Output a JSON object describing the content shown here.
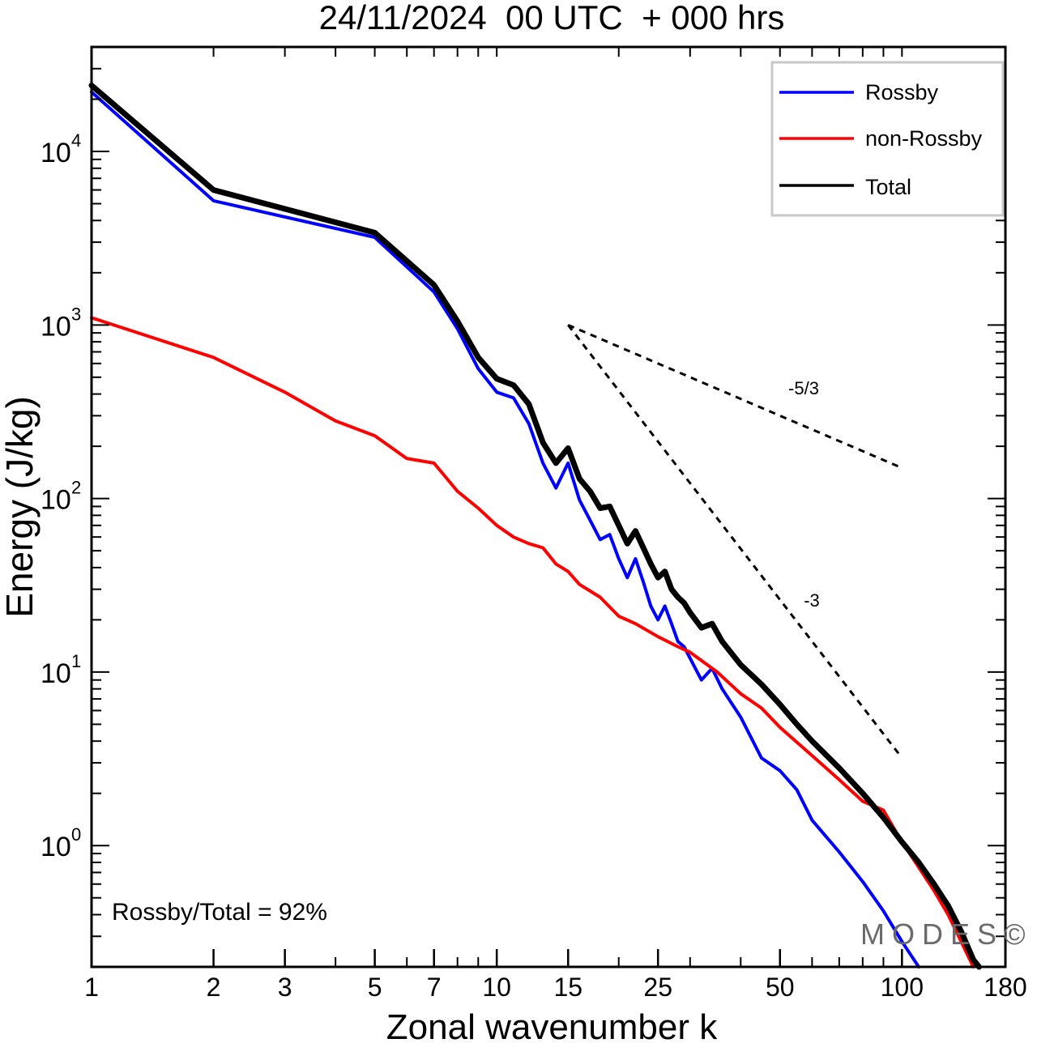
{
  "chart_data": {
    "type": "line",
    "title": "24/11/2024  00 UTC  + 000 hrs",
    "xlabel": "Zonal wavenumber k",
    "ylabel": "Energy (J/kg)",
    "xscale": "log",
    "yscale": "log",
    "xlim": [
      1,
      180
    ],
    "ylim": [
      0.2,
      40000
    ],
    "x_ticks": [
      1,
      2,
      3,
      5,
      7,
      10,
      15,
      25,
      50,
      100,
      180
    ],
    "x_tick_labels": [
      "1",
      "2",
      "3",
      "5",
      "7",
      "10",
      "15",
      "25",
      "50",
      "100",
      "180"
    ],
    "y_ticks": [
      1,
      10,
      100,
      1000,
      10000
    ],
    "y_tick_base": "10",
    "y_tick_exponents": [
      "0",
      "1",
      "2",
      "3",
      "4"
    ],
    "legend": {
      "placement": "top-right",
      "entries": [
        "Rossby",
        "non-Rossby",
        "Total"
      ]
    },
    "series": [
      {
        "name": "Rossby",
        "color": "#0000ff",
        "x": [
          1,
          2,
          5,
          7,
          8,
          9,
          10,
          11,
          12,
          13,
          14,
          15,
          16,
          17,
          18,
          19,
          20,
          21,
          22,
          23,
          24,
          25,
          26,
          27,
          28,
          29,
          30,
          32,
          34,
          36,
          40,
          45,
          50,
          55,
          60,
          70,
          80,
          90,
          100,
          110
        ],
        "y": [
          22000,
          5200,
          3200,
          1550,
          950,
          560,
          410,
          380,
          270,
          160,
          115,
          160,
          98,
          75,
          58,
          62,
          45,
          35,
          45,
          33,
          24,
          20,
          24,
          19,
          15,
          14,
          12,
          9,
          10.5,
          8,
          5.5,
          3.2,
          2.7,
          2.1,
          1.4,
          0.92,
          0.62,
          0.42,
          0.28,
          0.2
        ]
      },
      {
        "name": "non-Rossby",
        "color": "#ff0000",
        "x": [
          1,
          2,
          3,
          4,
          5,
          6,
          7,
          8,
          9,
          10,
          11,
          12,
          13,
          14,
          15,
          16,
          18,
          20,
          22,
          25,
          28,
          30,
          35,
          40,
          45,
          50,
          60,
          70,
          80,
          90,
          100,
          110,
          120,
          130,
          140,
          150
        ],
        "y": [
          1100,
          650,
          410,
          280,
          230,
          170,
          160,
          110,
          88,
          70,
          60,
          55,
          52,
          42,
          38,
          32,
          27,
          21,
          19,
          16,
          14,
          13,
          10,
          7.5,
          6.2,
          4.8,
          3.3,
          2.4,
          1.8,
          1.6,
          1.05,
          0.75,
          0.55,
          0.4,
          0.28,
          0.2
        ]
      },
      {
        "name": "Total",
        "color": "#000000",
        "x": [
          1,
          2,
          5,
          7,
          8,
          9,
          10,
          11,
          12,
          13,
          14,
          15,
          16,
          17,
          18,
          19,
          20,
          21,
          22,
          23,
          24,
          25,
          26,
          27,
          28,
          29,
          30,
          32,
          34,
          36,
          40,
          45,
          50,
          55,
          60,
          70,
          80,
          90,
          100,
          110,
          120,
          130,
          140,
          150,
          155
        ],
        "y": [
          24000,
          6000,
          3400,
          1700,
          1050,
          650,
          490,
          450,
          350,
          210,
          160,
          195,
          130,
          110,
          88,
          90,
          70,
          55,
          65,
          52,
          42,
          35,
          38,
          30,
          27,
          25,
          22,
          18,
          19,
          15,
          11,
          8.5,
          6.5,
          5,
          4,
          2.8,
          2,
          1.45,
          1.05,
          0.8,
          0.6,
          0.45,
          0.32,
          0.22,
          0.2
        ]
      }
    ],
    "reference_lines": [
      {
        "label": "-5/3",
        "x": [
          15,
          100
        ],
        "y": [
          1000,
          150
        ]
      },
      {
        "label": "-3",
        "x": [
          15,
          100
        ],
        "y": [
          1000,
          3.2
        ]
      }
    ],
    "annotation": "Rossby/Total = 92%",
    "watermark": "MODES©"
  }
}
